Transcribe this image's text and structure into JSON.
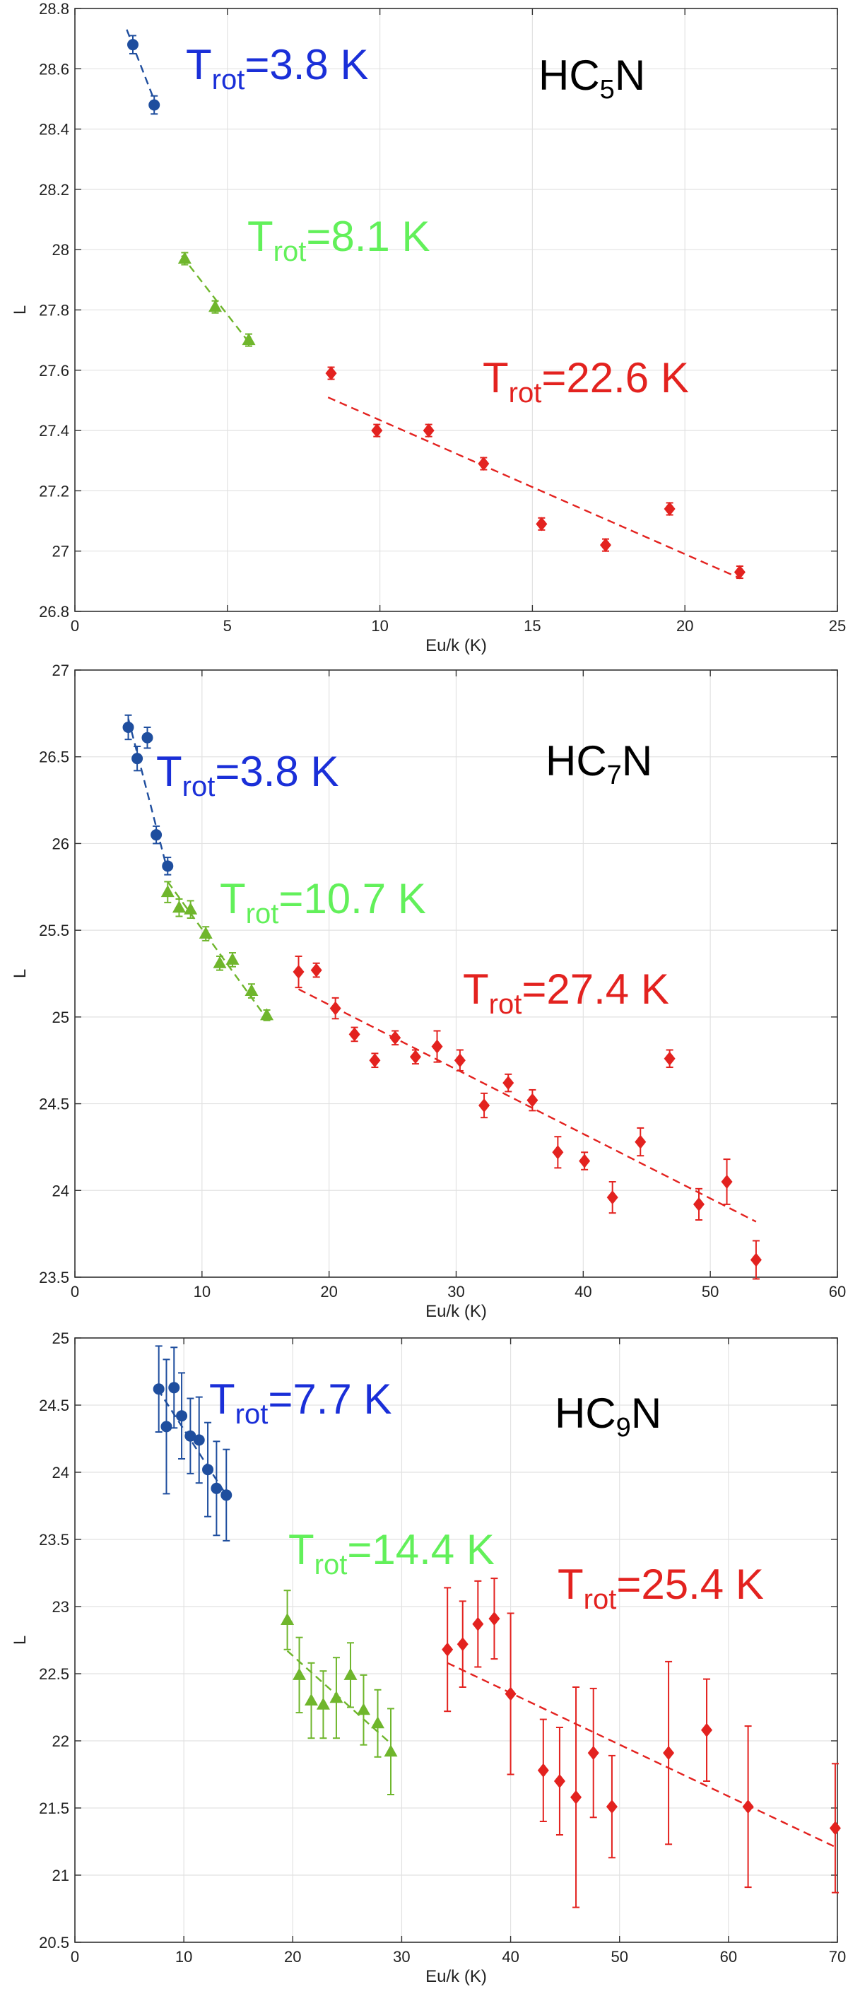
{
  "colors": {
    "blue": "#1f4e9e",
    "green": "#6fb62c",
    "red": "#e3221f",
    "label_blue": "#1a2fd8",
    "label_green": "#62f05a",
    "label_red": "#e3221f"
  },
  "chart_data": [
    {
      "type": "scatter",
      "molecule": {
        "base": "HC",
        "sub": "5",
        "end": "N"
      },
      "xlabel": "Eu/k (K)",
      "ylabel": "L",
      "xlim": [
        0,
        25
      ],
      "ylim": [
        26.8,
        28.8
      ],
      "xticks": [
        0,
        5,
        10,
        15,
        20,
        25
      ],
      "yticks": [
        26.8,
        27,
        27.2,
        27.4,
        27.6,
        27.8,
        28,
        28.2,
        28.4,
        28.6,
        28.8
      ],
      "grid": true,
      "series": [
        {
          "color": "blue",
          "marker": "circle",
          "label": {
            "main": "T",
            "sub": "rot",
            "rest": "=3.8 K"
          },
          "points": [
            [
              1.9,
              28.68,
              0.03
            ],
            [
              2.6,
              28.48,
              0.03
            ]
          ],
          "fit": [
            [
              1.7,
              28.73
            ],
            [
              2.7,
              28.47
            ]
          ]
        },
        {
          "color": "green",
          "marker": "triangle",
          "label": {
            "main": "T",
            "sub": "rot",
            "rest": "=8.1 K"
          },
          "points": [
            [
              3.6,
              27.97,
              0.02
            ],
            [
              4.6,
              27.81,
              0.02
            ],
            [
              5.7,
              27.7,
              0.02
            ]
          ],
          "fit": [
            [
              3.5,
              27.98
            ],
            [
              5.8,
              27.68
            ]
          ]
        },
        {
          "color": "red",
          "marker": "diamond",
          "label": {
            "main": "T",
            "sub": "rot",
            "rest": "=22.6 K"
          },
          "points": [
            [
              8.4,
              27.59,
              0.02
            ],
            [
              9.9,
              27.4,
              0.02
            ],
            [
              11.6,
              27.4,
              0.02
            ],
            [
              13.4,
              27.29,
              0.02
            ],
            [
              15.3,
              27.09,
              0.02
            ],
            [
              17.4,
              27.02,
              0.02
            ],
            [
              19.5,
              27.14,
              0.02
            ],
            [
              21.8,
              26.93,
              0.02
            ]
          ],
          "fit": [
            [
              8.3,
              27.51
            ],
            [
              21.8,
              26.91
            ]
          ]
        }
      ]
    },
    {
      "type": "scatter",
      "molecule": {
        "base": "HC",
        "sub": "7",
        "end": "N"
      },
      "xlabel": "Eu/k (K)",
      "ylabel": "L",
      "xlim": [
        0,
        60
      ],
      "ylim": [
        23.5,
        27
      ],
      "xticks": [
        0,
        10,
        20,
        30,
        40,
        50,
        60
      ],
      "yticks": [
        23.5,
        24,
        24.5,
        25,
        25.5,
        26,
        26.5,
        27
      ],
      "grid": true,
      "series": [
        {
          "color": "blue",
          "marker": "circle",
          "label": {
            "main": "T",
            "sub": "rot",
            "rest": "=3.8 K"
          },
          "points": [
            [
              4.2,
              26.67,
              0.07
            ],
            [
              4.9,
              26.49,
              0.07
            ],
            [
              5.7,
              26.61,
              0.06
            ],
            [
              6.4,
              26.05,
              0.05
            ],
            [
              7.3,
              25.87,
              0.05
            ]
          ],
          "fit": [
            [
              4.2,
              26.72
            ],
            [
              7.3,
              25.84
            ]
          ]
        },
        {
          "color": "green",
          "marker": "triangle",
          "label": {
            "main": "T",
            "sub": "rot",
            "rest": "=10.7  K"
          },
          "points": [
            [
              7.3,
              25.72,
              0.06
            ],
            [
              8.2,
              25.63,
              0.05
            ],
            [
              9.1,
              25.62,
              0.05
            ],
            [
              10.3,
              25.48,
              0.04
            ],
            [
              11.4,
              25.31,
              0.04
            ],
            [
              12.4,
              25.33,
              0.04
            ],
            [
              13.9,
              25.15,
              0.04
            ],
            [
              15.1,
              25.01,
              0.03
            ]
          ],
          "fit": [
            [
              7.3,
              25.78
            ],
            [
              15.1,
              24.99
            ]
          ]
        },
        {
          "color": "red",
          "marker": "diamond",
          "label": {
            "main": "T",
            "sub": "rot",
            "rest": "=27.4 K"
          },
          "points": [
            [
              17.6,
              25.26,
              0.09
            ],
            [
              19,
              25.27,
              0.04
            ],
            [
              20.5,
              25.05,
              0.06
            ],
            [
              22,
              24.9,
              0.04
            ],
            [
              23.6,
              24.75,
              0.04
            ],
            [
              25.2,
              24.88,
              0.04
            ],
            [
              26.8,
              24.77,
              0.04
            ],
            [
              28.5,
              24.83,
              0.09
            ],
            [
              30.3,
              24.75,
              0.06
            ],
            [
              32.2,
              24.49,
              0.07
            ],
            [
              34.1,
              24.62,
              0.05
            ],
            [
              36,
              24.52,
              0.06
            ],
            [
              38,
              24.22,
              0.09
            ],
            [
              40.1,
              24.17,
              0.05
            ],
            [
              42.3,
              23.96,
              0.09
            ],
            [
              44.5,
              24.28,
              0.08
            ],
            [
              46.8,
              24.76,
              0.05
            ],
            [
              49.1,
              23.92,
              0.09
            ],
            [
              51.3,
              24.05,
              0.13
            ],
            [
              53.6,
              23.6,
              0.11
            ]
          ],
          "fit": [
            [
              17.6,
              25.16
            ],
            [
              53.6,
              23.82
            ]
          ]
        }
      ]
    },
    {
      "type": "scatter",
      "molecule": {
        "base": "HC",
        "sub": "9",
        "end": "N"
      },
      "xlabel": "Eu/k (K)",
      "ylabel": "L",
      "xlim": [
        0,
        70
      ],
      "ylim": [
        20.5,
        25
      ],
      "xticks": [
        0,
        10,
        20,
        30,
        40,
        50,
        60,
        70
      ],
      "yticks": [
        20.5,
        21,
        21.5,
        22,
        22.5,
        23,
        23.5,
        24,
        24.5,
        25
      ],
      "grid": true,
      "series": [
        {
          "color": "blue",
          "marker": "circle",
          "label": {
            "main": "T",
            "sub": "rot",
            "rest": "=7.7 K"
          },
          "points": [
            [
              7.7,
              24.62,
              0.32
            ],
            [
              8.4,
              24.34,
              0.5
            ],
            [
              9.1,
              24.63,
              0.3
            ],
            [
              9.8,
              24.42,
              0.32
            ],
            [
              10.6,
              24.27,
              0.28
            ],
            [
              11.4,
              24.24,
              0.32
            ],
            [
              12.2,
              24.02,
              0.35
            ],
            [
              13.0,
              23.88,
              0.35
            ],
            [
              13.9,
              23.83,
              0.34
            ]
          ],
          "fit": [
            [
              7.6,
              24.62
            ],
            [
              13.9,
              23.83
            ]
          ]
        },
        {
          "color": "green",
          "marker": "triangle",
          "label": {
            "main": "T",
            "sub": "rot",
            "rest": "=14.4 K"
          },
          "points": [
            [
              19.5,
              22.9,
              0.22
            ],
            [
              20.6,
              22.49,
              0.28
            ],
            [
              21.7,
              22.3,
              0.28
            ],
            [
              22.8,
              22.27,
              0.25
            ],
            [
              24.0,
              22.32,
              0.3
            ],
            [
              25.3,
              22.49,
              0.24
            ],
            [
              26.5,
              22.23,
              0.26
            ],
            [
              27.8,
              22.13,
              0.25
            ],
            [
              29.0,
              21.92,
              0.32
            ]
          ],
          "fit": [
            [
              19.5,
              22.67
            ],
            [
              29.0,
              21.98
            ]
          ]
        },
        {
          "color": "red",
          "marker": "diamond",
          "label": {
            "main": "T",
            "sub": "rot",
            "rest": "=25.4 K"
          },
          "points": [
            [
              34.2,
              22.68,
              0.46
            ],
            [
              35.6,
              22.72,
              0.32
            ],
            [
              37.0,
              22.87,
              0.32
            ],
            [
              38.5,
              22.91,
              0.3
            ],
            [
              40.0,
              22.35,
              0.6
            ],
            [
              43.0,
              21.78,
              0.38
            ],
            [
              44.5,
              21.7,
              0.4
            ],
            [
              46.0,
              21.58,
              0.82
            ],
            [
              47.6,
              21.91,
              0.48
            ],
            [
              49.3,
              21.51,
              0.38
            ],
            [
              54.5,
              21.91,
              0.68
            ],
            [
              58.0,
              22.08,
              0.38
            ],
            [
              61.8,
              21.51,
              0.6
            ],
            [
              69.8,
              21.35,
              0.48
            ]
          ],
          "fit": [
            [
              34.2,
              22.58
            ],
            [
              69.8,
              21.21
            ]
          ]
        }
      ]
    }
  ]
}
